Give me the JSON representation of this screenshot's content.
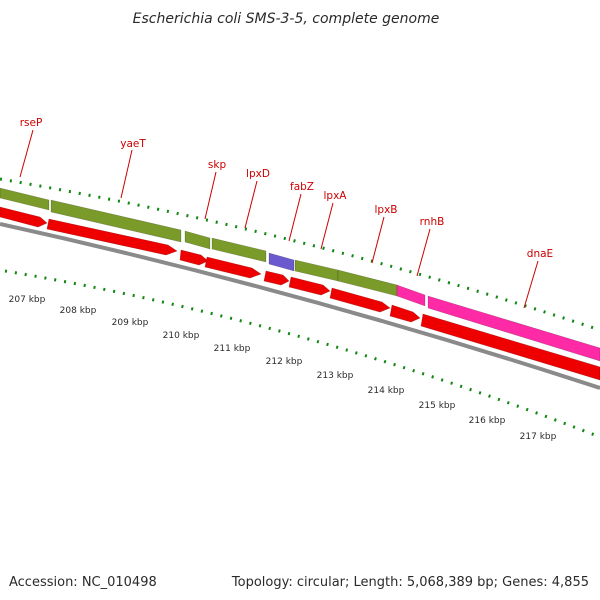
{
  "title": "Escherichia coli SMS-3-5, complete genome",
  "footer": {
    "accession": "Accession: NC_010498",
    "summary": "Topology: circular; Length: 5,068,389 bp; Genes: 4,855"
  },
  "colors": {
    "backbone": "#8a8a8a",
    "cds": "#ee0000",
    "gene_olive": "#7a9a2a",
    "gene_magenta": "#ff2aa6",
    "gene_purple": "#6a5acd",
    "label": "#cc0000",
    "tick": "#118811"
  },
  "gene_labels": [
    "rseP",
    "yaeT",
    "skp",
    "lpxD",
    "fabZ",
    "lpxA",
    "lpxB",
    "rnhB",
    "dnaE"
  ],
  "scale_labels": [
    "207 kbp",
    "208 kbp",
    "209 kbp",
    "210 kbp",
    "211 kbp",
    "212 kbp",
    "213 kbp",
    "214 kbp",
    "215 kbp",
    "216 kbp",
    "217 kbp"
  ]
}
